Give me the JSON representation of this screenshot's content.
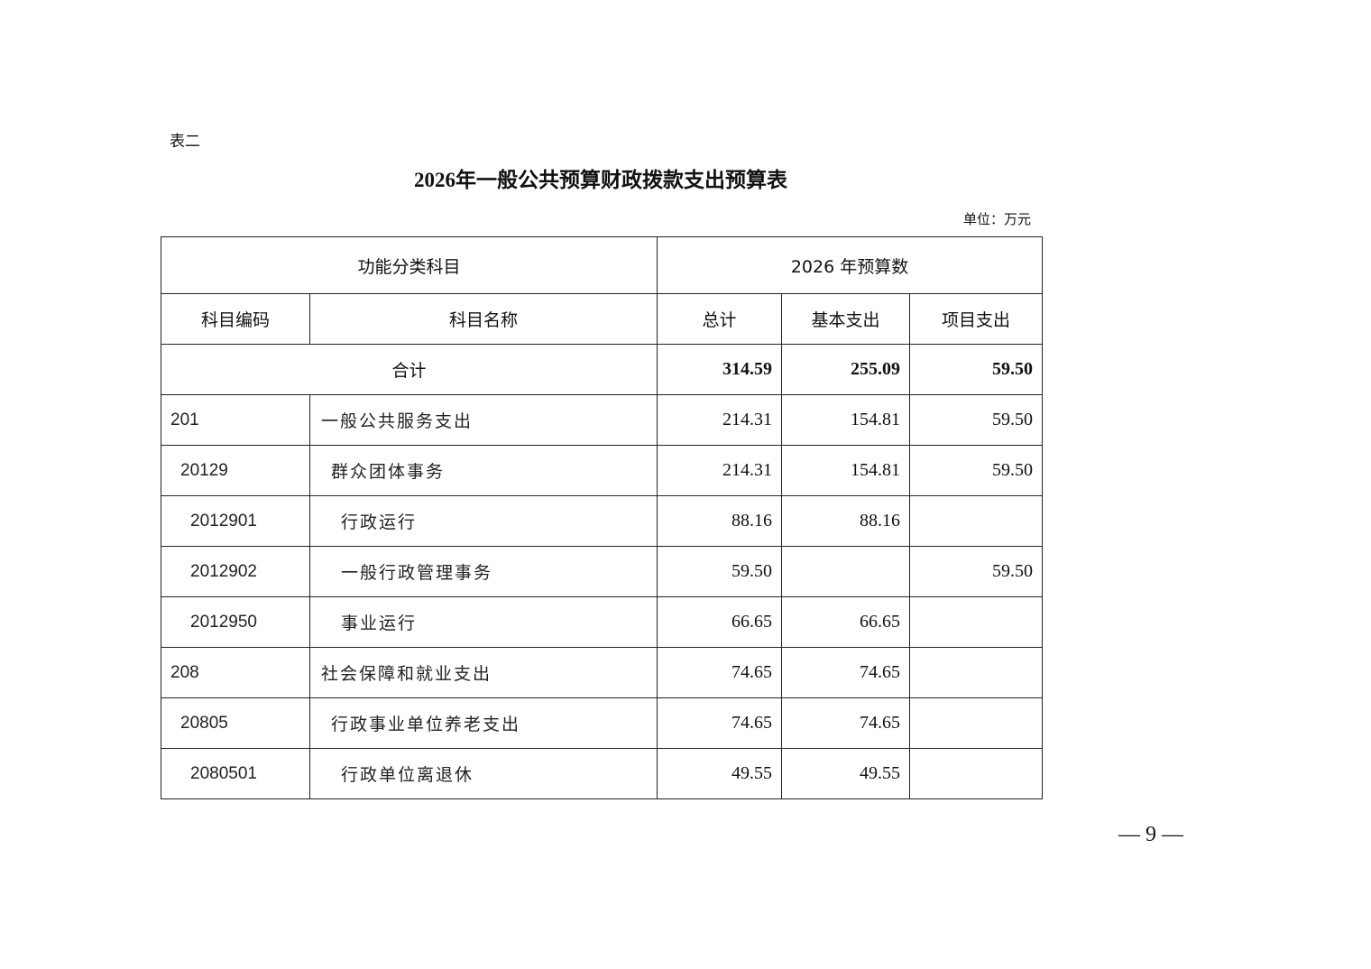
{
  "doc_label": "表二",
  "title": "2026年一般公共预算财政拨款支出预算表",
  "unit": "单位：万元",
  "table": {
    "group_headers": [
      "功能分类科目",
      "2026 年预算数"
    ],
    "headers": [
      "科目编码",
      "科目名称",
      "总计",
      "基本支出",
      "项目支出"
    ],
    "total": {
      "label": "合计",
      "total": "314.59",
      "basic": "255.09",
      "project": "59.50"
    },
    "rows": [
      {
        "code": "201",
        "name": "一般公共服务支出",
        "total": "214.31",
        "basic": "154.81",
        "project": "59.50",
        "level": 1
      },
      {
        "code": "20129",
        "name": "群众团体事务",
        "total": "214.31",
        "basic": "154.81",
        "project": "59.50",
        "level": 2
      },
      {
        "code": "2012901",
        "name": "行政运行",
        "total": "88.16",
        "basic": "88.16",
        "project": "",
        "level": 3
      },
      {
        "code": "2012902",
        "name": "一般行政管理事务",
        "total": "59.50",
        "basic": "",
        "project": "59.50",
        "level": 3
      },
      {
        "code": "2012950",
        "name": "事业运行",
        "total": "66.65",
        "basic": "66.65",
        "project": "",
        "level": 3
      },
      {
        "code": "208",
        "name": "社会保障和就业支出",
        "total": "74.65",
        "basic": "74.65",
        "project": "",
        "level": 1
      },
      {
        "code": "20805",
        "name": "行政事业单位养老支出",
        "total": "74.65",
        "basic": "74.65",
        "project": "",
        "level": 2
      },
      {
        "code": "2080501",
        "name": "行政单位离退休",
        "total": "49.55",
        "basic": "49.55",
        "project": "",
        "level": 3
      }
    ]
  },
  "page_number": "— 9 —"
}
